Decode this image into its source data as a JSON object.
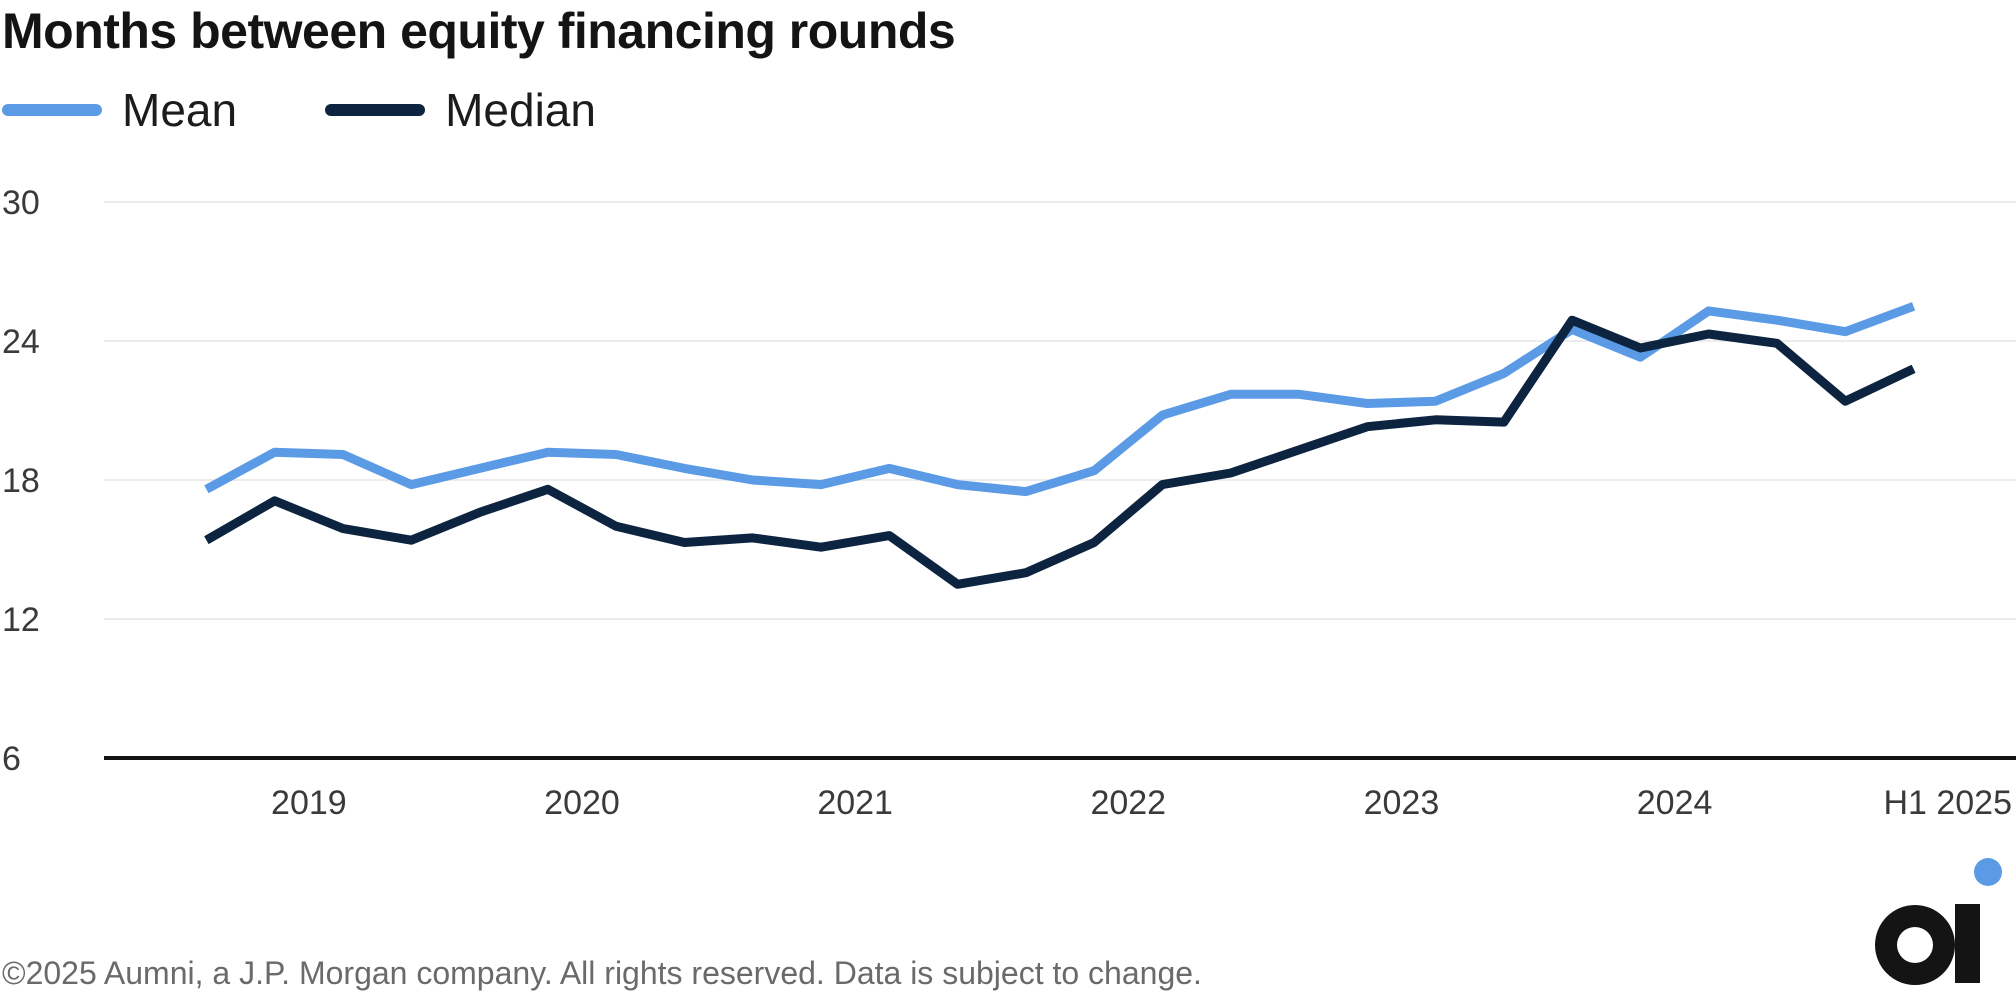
{
  "chart_data": {
    "type": "line",
    "title": "Months between equity financing rounds",
    "xlabel": "",
    "ylabel": "",
    "ylim": [
      6,
      30
    ],
    "yticks": [
      6,
      12,
      18,
      24,
      30
    ],
    "x_tick_labels": [
      "2019",
      "2020",
      "2021",
      "2022",
      "2023",
      "2024",
      "H1 2025"
    ],
    "x_tick_positions": [
      2019,
      2020,
      2021,
      2022,
      2023,
      2024,
      2025
    ],
    "xlim": [
      2018.25,
      2025.25
    ],
    "grid": true,
    "legend_placement": "top-left",
    "series": [
      {
        "name": "Mean",
        "color": "#5b9be6",
        "x": [
          2018.625,
          2018.875,
          2019.125,
          2019.375,
          2019.625,
          2019.875,
          2020.125,
          2020.375,
          2020.625,
          2020.875,
          2021.125,
          2021.375,
          2021.625,
          2021.875,
          2022.125,
          2022.375,
          2022.625,
          2022.875,
          2023.125,
          2023.375,
          2023.625,
          2023.875,
          2024.125,
          2024.375,
          2024.625,
          2024.875
        ],
        "values": [
          17.6,
          19.2,
          19.1,
          17.8,
          18.5,
          19.2,
          19.1,
          18.5,
          18.0,
          17.8,
          18.5,
          17.8,
          17.5,
          18.4,
          20.8,
          21.7,
          21.7,
          21.3,
          21.4,
          22.6,
          24.5,
          23.3,
          25.3,
          24.9,
          24.4,
          25.5
        ]
      },
      {
        "name": "Median",
        "color": "#0d2440",
        "x": [
          2018.625,
          2018.875,
          2019.125,
          2019.375,
          2019.625,
          2019.875,
          2020.125,
          2020.375,
          2020.625,
          2020.875,
          2021.125,
          2021.375,
          2021.625,
          2021.875,
          2022.125,
          2022.375,
          2022.625,
          2022.875,
          2023.125,
          2023.375,
          2023.625,
          2023.875,
          2024.125,
          2024.375,
          2024.625,
          2024.875
        ],
        "values": [
          15.4,
          17.1,
          15.9,
          15.4,
          16.6,
          17.6,
          16.0,
          15.3,
          15.5,
          15.1,
          15.6,
          13.5,
          14.0,
          15.3,
          17.8,
          18.3,
          19.3,
          20.3,
          20.6,
          20.5,
          24.9,
          23.7,
          24.3,
          23.9,
          21.4,
          22.8
        ]
      }
    ]
  },
  "footer": {
    "copyright": "©2025 Aumni, a J.P. Morgan company. All rights reserved. Data is subject to change."
  },
  "logo": {
    "letter": "a",
    "dot_color": "#5b9be6",
    "mark_color": "#141414"
  }
}
